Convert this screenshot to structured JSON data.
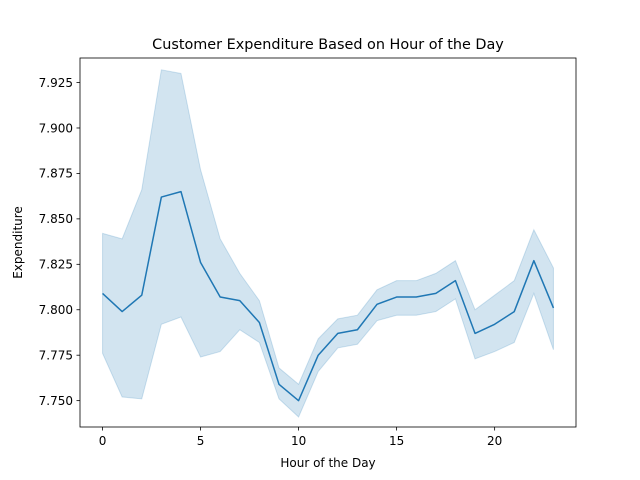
{
  "chart_data": {
    "type": "line",
    "title": "Customer Expenditure Based on Hour of the Day",
    "xlabel": "Hour of the Day",
    "ylabel": "Expenditure",
    "xlim": [
      -1.15,
      24.15
    ],
    "ylim": [
      7.7355,
      7.9385
    ],
    "x_ticks": [
      0,
      5,
      10,
      15,
      20
    ],
    "y_ticks": [
      7.75,
      7.775,
      7.8,
      7.825,
      7.85,
      7.875,
      7.9,
      7.925
    ],
    "x_tick_labels": [
      "0",
      "5",
      "10",
      "15",
      "20"
    ],
    "y_tick_labels": [
      "7.750",
      "7.775",
      "7.800",
      "7.825",
      "7.850",
      "7.875",
      "7.900",
      "7.925"
    ],
    "grid": false,
    "legend": "none",
    "line_color": "#1f77b4",
    "band_color": "#1f77b4",
    "series": [
      {
        "x": [
          0,
          1,
          2,
          3,
          4,
          5,
          6,
          7,
          8,
          9,
          10,
          11,
          12,
          13,
          14,
          15,
          16,
          17,
          18,
          19,
          20,
          21,
          22,
          23
        ],
        "y": [
          7.809,
          7.799,
          7.808,
          7.862,
          7.865,
          7.826,
          7.807,
          7.805,
          7.793,
          7.759,
          7.75,
          7.775,
          7.787,
          7.789,
          7.803,
          7.807,
          7.807,
          7.809,
          7.816,
          7.787,
          7.792,
          7.799,
          7.827,
          7.801
        ],
        "ci_lower": [
          7.776,
          7.752,
          7.751,
          7.792,
          7.796,
          7.774,
          7.777,
          7.789,
          7.782,
          7.751,
          7.741,
          7.766,
          7.779,
          7.781,
          7.794,
          7.797,
          7.797,
          7.799,
          7.806,
          7.773,
          7.777,
          7.782,
          7.809,
          7.778
        ],
        "ci_upper": [
          7.842,
          7.839,
          7.866,
          7.932,
          7.93,
          7.877,
          7.839,
          7.82,
          7.805,
          7.768,
          7.759,
          7.784,
          7.795,
          7.797,
          7.811,
          7.816,
          7.816,
          7.82,
          7.827,
          7.8,
          7.808,
          7.816,
          7.844,
          7.823
        ]
      }
    ]
  }
}
